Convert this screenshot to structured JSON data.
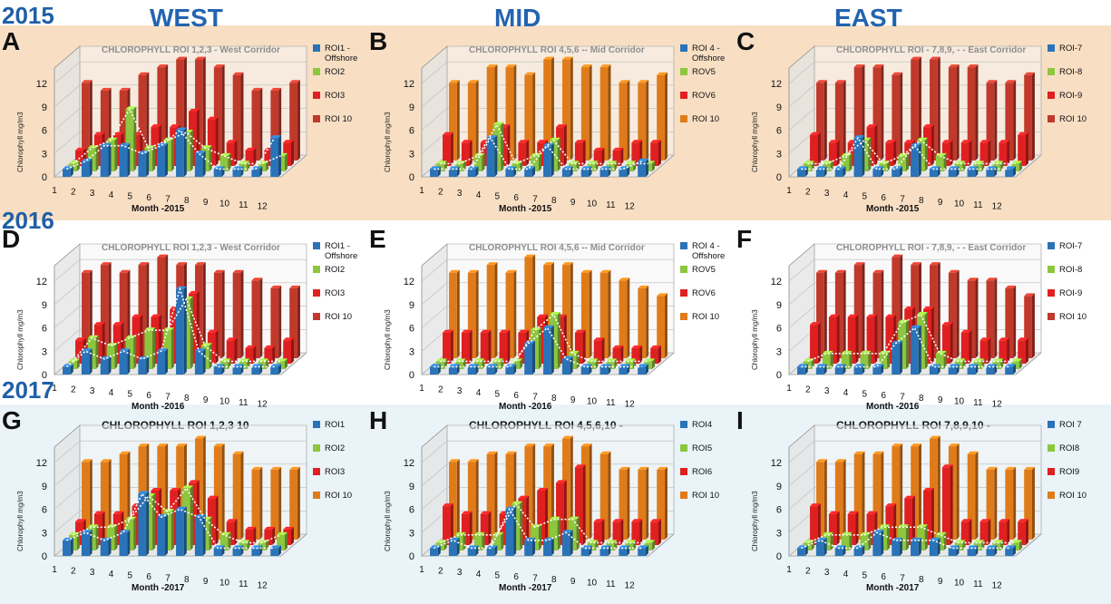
{
  "header": {
    "col_west": "WEST",
    "col_mid": "MID",
    "col_east": "EAST"
  },
  "years": {
    "y2015": "2015",
    "y2016": "2016",
    "y2017": "2017"
  },
  "colors": {
    "s1": "#2a73b8",
    "s2": "#8dc63f",
    "s3": "#e02020",
    "s4": "#c0392b"
  },
  "chart_data": [
    {
      "letter": "A",
      "type": "bar",
      "title": "CHLOROPHYLL   ROI 1,2,3  - West Corridor",
      "xlabel": "Month -2015",
      "ylabel": "Chlorophyll mg/m3",
      "yticks": [
        "0",
        "3",
        "6",
        "9",
        "12"
      ],
      "ylim": [
        0,
        14
      ],
      "categories": [
        "1",
        "2",
        "3",
        "4",
        "5",
        "6",
        "7",
        "8",
        "9",
        "10",
        "11",
        "12"
      ],
      "series": [
        {
          "name": "ROI1 - Offshore",
          "color": "#2a73b8",
          "values": [
            1,
            2,
            4,
            4,
            3,
            4,
            6,
            3,
            1,
            1,
            1,
            5
          ]
        },
        {
          "name": "ROI2",
          "color": "#8dc63f",
          "values": [
            1,
            3,
            4,
            8,
            3,
            4,
            5,
            3,
            2,
            1,
            1,
            2
          ]
        },
        {
          "name": "ROI3",
          "color": "#e02020",
          "values": [
            2,
            4,
            4,
            4,
            5,
            5,
            7,
            6,
            3,
            2,
            2,
            3
          ]
        },
        {
          "name": "ROI 10",
          "color": "#c0392b",
          "values": [
            10,
            9,
            9,
            11,
            12,
            13,
            13,
            12,
            11,
            9,
            9,
            10
          ]
        }
      ]
    },
    {
      "letter": "B",
      "type": "bar",
      "title": "CHLOROPHYLL    ROI 4,5,6  -- Mid  Corridor",
      "xlabel": "Month -2015",
      "ylabel": "Chlorophyll mg/m3",
      "yticks": [
        "0",
        "3",
        "6",
        "9",
        "12"
      ],
      "ylim": [
        0,
        14
      ],
      "categories": [
        "1",
        "2",
        "3",
        "4",
        "5",
        "6",
        "7",
        "8",
        "9",
        "10",
        "11",
        "12"
      ],
      "series": [
        {
          "name": "ROI 4 - Offshore",
          "color": "#2a73b8",
          "values": [
            1,
            1,
            1,
            5,
            1,
            1,
            4,
            1,
            1,
            1,
            1,
            2
          ]
        },
        {
          "name": "ROV5",
          "color": "#8dc63f",
          "values": [
            1,
            1,
            2,
            6,
            1,
            2,
            4,
            1,
            1,
            1,
            1,
            1
          ]
        },
        {
          "name": "ROV6",
          "color": "#e02020",
          "values": [
            4,
            3,
            3,
            5,
            3,
            3,
            5,
            3,
            2,
            2,
            3,
            3
          ]
        },
        {
          "name": "ROI 10",
          "color": "#e07b1a",
          "values": [
            10,
            10,
            12,
            12,
            11,
            13,
            13,
            12,
            12,
            10,
            10,
            11
          ]
        }
      ]
    },
    {
      "letter": "C",
      "type": "bar",
      "title": "CHLOROPHYLL     ROI - 7,8,9,  -    - East  Corridor",
      "xlabel": "Month -2015",
      "ylabel": "Chlorophyll mg/m3",
      "yticks": [
        "0",
        "3",
        "6",
        "9",
        "12"
      ],
      "ylim": [
        0,
        14
      ],
      "categories": [
        "1",
        "2",
        "3",
        "4",
        "5",
        "6",
        "7",
        "8",
        "9",
        "10",
        "11",
        "12"
      ],
      "series": [
        {
          "name": "ROI-7",
          "color": "#2a73b8",
          "values": [
            1,
            1,
            1,
            5,
            1,
            1,
            4,
            1,
            1,
            1,
            1,
            1
          ]
        },
        {
          "name": "ROI-8",
          "color": "#8dc63f",
          "values": [
            1,
            1,
            2,
            4,
            1,
            2,
            4,
            2,
            1,
            1,
            1,
            1
          ]
        },
        {
          "name": "ROI-9",
          "color": "#e02020",
          "values": [
            4,
            3,
            3,
            5,
            3,
            3,
            5,
            3,
            3,
            3,
            3,
            4
          ]
        },
        {
          "name": "ROI 10",
          "color": "#c0392b",
          "values": [
            10,
            10,
            12,
            12,
            11,
            13,
            13,
            12,
            12,
            10,
            10,
            11
          ]
        }
      ]
    },
    {
      "letter": "D",
      "type": "bar",
      "title": "CHLOROPHYLL    ROI  1,2,3  - West Corridor",
      "xlabel": "Month -2016",
      "ylabel": "Chlorophyll mg/m3",
      "yticks": [
        "0",
        "3",
        "6",
        "9",
        "12"
      ],
      "ylim": [
        0,
        14
      ],
      "categories": [
        "1",
        "2",
        "3",
        "4",
        "5",
        "6",
        "7",
        "8",
        "9",
        "10",
        "11",
        "12"
      ],
      "series": [
        {
          "name": "ROI1 - Offshore",
          "color": "#2a73b8",
          "values": [
            1,
            3,
            2,
            3,
            2,
            3,
            11,
            3,
            1,
            1,
            1,
            1
          ]
        },
        {
          "name": "ROI2",
          "color": "#8dc63f",
          "values": [
            1,
            4,
            3,
            4,
            5,
            5,
            9,
            3,
            1,
            1,
            1,
            1
          ]
        },
        {
          "name": "ROI3",
          "color": "#e02020",
          "values": [
            3,
            5,
            5,
            6,
            6,
            7,
            9,
            4,
            3,
            2,
            2,
            3
          ]
        },
        {
          "name": "ROI 10",
          "color": "#c0392b",
          "values": [
            11,
            12,
            11,
            12,
            13,
            12,
            12,
            11,
            11,
            10,
            9,
            9
          ]
        }
      ]
    },
    {
      "letter": "E",
      "type": "bar",
      "title": "CHLOROPHYLL     ROI 4,5,6  -- Mid  Corridor",
      "xlabel": "Month -2016",
      "ylabel": "Chlorophyll mg/m3",
      "yticks": [
        "0",
        "3",
        "6",
        "9",
        "12"
      ],
      "ylim": [
        0,
        14
      ],
      "categories": [
        "1",
        "2",
        "3",
        "4",
        "5",
        "6",
        "7",
        "8",
        "9",
        "10",
        "11",
        "12"
      ],
      "series": [
        {
          "name": "ROI 4 - Offshore",
          "color": "#2a73b8",
          "values": [
            1,
            1,
            1,
            1,
            1,
            4,
            6,
            2,
            1,
            1,
            1,
            1
          ]
        },
        {
          "name": "ROV5",
          "color": "#8dc63f",
          "values": [
            1,
            1,
            1,
            1,
            1,
            5,
            7,
            2,
            1,
            1,
            1,
            1
          ]
        },
        {
          "name": "ROV6",
          "color": "#e02020",
          "values": [
            4,
            4,
            4,
            4,
            4,
            6,
            6,
            4,
            3,
            2,
            2,
            2
          ]
        },
        {
          "name": "ROI 10",
          "color": "#e07b1a",
          "values": [
            11,
            11,
            12,
            11,
            13,
            12,
            12,
            11,
            11,
            10,
            9,
            8
          ]
        }
      ]
    },
    {
      "letter": "F",
      "type": "bar",
      "title": "CHLOROPHYLL     ROI - 7,8,9,  -    - East  Corridor",
      "xlabel": "Month -2016",
      "ylabel": "Chlorophyll mg/m3",
      "yticks": [
        "0",
        "3",
        "6",
        "9",
        "12"
      ],
      "ylim": [
        0,
        14
      ],
      "categories": [
        "1",
        "2",
        "3",
        "4",
        "5",
        "6",
        "7",
        "8",
        "9",
        "10",
        "11",
        "12"
      ],
      "series": [
        {
          "name": "ROI-7",
          "color": "#2a73b8",
          "values": [
            1,
            1,
            1,
            1,
            1,
            4,
            6,
            1,
            1,
            1,
            1,
            1
          ]
        },
        {
          "name": "ROI-8",
          "color": "#8dc63f",
          "values": [
            1,
            2,
            2,
            2,
            2,
            6,
            7,
            2,
            1,
            1,
            1,
            1
          ]
        },
        {
          "name": "ROI-9",
          "color": "#e02020",
          "values": [
            5,
            6,
            6,
            6,
            6,
            7,
            7,
            5,
            4,
            3,
            3,
            3
          ]
        },
        {
          "name": "ROI 10",
          "color": "#c0392b",
          "values": [
            11,
            11,
            12,
            11,
            13,
            12,
            12,
            11,
            10,
            10,
            9,
            8
          ]
        }
      ]
    },
    {
      "letter": "G",
      "type": "bar",
      "title": "CHLOROPHYLL    ROI  1,2,3  10",
      "xlabel": "Month -2017",
      "ylabel": "Chlorophyll mg/m3",
      "yticks": [
        "0",
        "3",
        "6",
        "9",
        "12"
      ],
      "ylim": [
        0,
        14
      ],
      "categories": [
        "1",
        "2",
        "3",
        "4",
        "5",
        "6",
        "7",
        "8",
        "9",
        "10",
        "11",
        "12"
      ],
      "series": [
        {
          "name": "ROI1",
          "color": "#2a73b8",
          "values": [
            2,
            3,
            2,
            3,
            8,
            5,
            6,
            5,
            1,
            1,
            1,
            1
          ]
        },
        {
          "name": "ROI2",
          "color": "#8dc63f",
          "values": [
            2,
            3,
            3,
            4,
            7,
            5,
            8,
            4,
            2,
            1,
            1,
            2
          ]
        },
        {
          "name": "ROI3",
          "color": "#e02020",
          "values": [
            3,
            4,
            4,
            5,
            7,
            7,
            8,
            6,
            3,
            2,
            2,
            2
          ]
        },
        {
          "name": "ROI 10",
          "color": "#e07b1a",
          "values": [
            10,
            10,
            11,
            12,
            12,
            12,
            13,
            12,
            11,
            9,
            9,
            9
          ]
        }
      ]
    },
    {
      "letter": "H",
      "type": "bar",
      "title": "CHLOROPHYLL     ROI  4,5,6,10 -",
      "xlabel": "Month -2017",
      "ylabel": "Chlorophyll mg/m3",
      "yticks": [
        "0",
        "3",
        "6",
        "9",
        "12"
      ],
      "ylim": [
        0,
        14
      ],
      "categories": [
        "1",
        "2",
        "3",
        "4",
        "5",
        "6",
        "7",
        "8",
        "9",
        "10",
        "11",
        "12"
      ],
      "series": [
        {
          "name": "ROI4",
          "color": "#2a73b8",
          "values": [
            1,
            2,
            1,
            1,
            6,
            2,
            2,
            3,
            1,
            1,
            1,
            1
          ]
        },
        {
          "name": "ROI5",
          "color": "#8dc63f",
          "values": [
            1,
            2,
            2,
            2,
            6,
            3,
            4,
            4,
            1,
            1,
            1,
            1
          ]
        },
        {
          "name": "ROI6",
          "color": "#e02020",
          "values": [
            5,
            4,
            4,
            4,
            6,
            7,
            8,
            10,
            3,
            3,
            3,
            3
          ]
        },
        {
          "name": "ROI 10",
          "color": "#e07b1a",
          "values": [
            10,
            10,
            11,
            11,
            12,
            12,
            13,
            12,
            11,
            9,
            9,
            9
          ]
        }
      ]
    },
    {
      "letter": "I",
      "type": "bar",
      "title": "CHLOROPHYLL     ROI  7,8,9,10 -",
      "xlabel": "Month -2017",
      "ylabel": "Chlorophyll mg/m3",
      "yticks": [
        "0",
        "3",
        "6",
        "9",
        "12"
      ],
      "ylim": [
        0,
        14
      ],
      "categories": [
        "1",
        "2",
        "3",
        "4",
        "5",
        "6",
        "7",
        "8",
        "9",
        "10",
        "11",
        "12"
      ],
      "series": [
        {
          "name": "ROI 7",
          "color": "#2a73b8",
          "values": [
            1,
            2,
            1,
            1,
            3,
            2,
            2,
            2,
            1,
            1,
            1,
            1
          ]
        },
        {
          "name": "ROI8",
          "color": "#8dc63f",
          "values": [
            1,
            2,
            2,
            2,
            3,
            3,
            3,
            2,
            1,
            1,
            1,
            1
          ]
        },
        {
          "name": "ROI9",
          "color": "#e02020",
          "values": [
            5,
            4,
            4,
            4,
            5,
            6,
            7,
            10,
            3,
            3,
            3,
            3
          ]
        },
        {
          "name": "ROI 10",
          "color": "#e07b1a",
          "values": [
            10,
            10,
            11,
            11,
            12,
            12,
            13,
            12,
            11,
            9,
            9,
            9
          ]
        }
      ]
    }
  ]
}
